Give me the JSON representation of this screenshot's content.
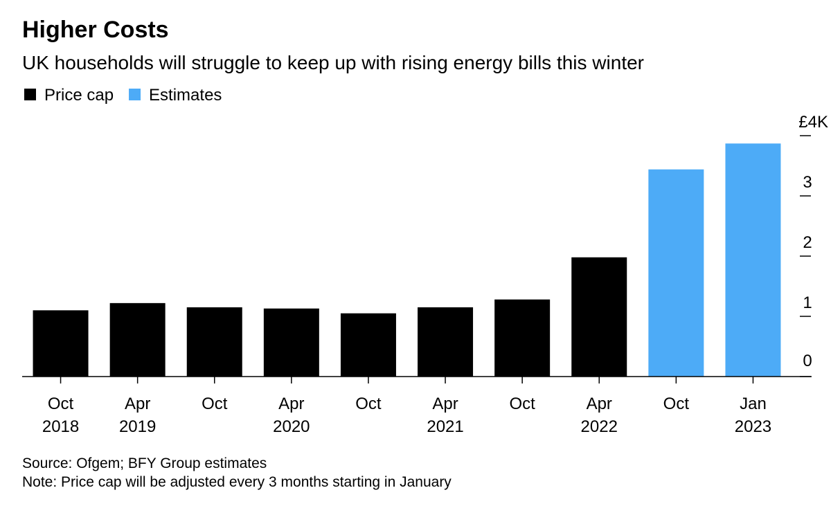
{
  "chart_data": {
    "type": "bar",
    "title": "Higher Costs",
    "subtitle": "UK households will struggle to keep up with rising energy bills this winter",
    "categories": [
      [
        "Oct",
        "2018"
      ],
      [
        "Apr",
        "2019"
      ],
      [
        "Oct"
      ],
      [
        "Apr",
        "2020"
      ],
      [
        "Oct"
      ],
      [
        "Apr",
        "2021"
      ],
      [
        "Oct"
      ],
      [
        "Apr",
        "2022"
      ],
      [
        "Oct"
      ],
      [
        "Jan",
        "2023"
      ]
    ],
    "series": [
      {
        "name": "Price cap",
        "color": "#000000",
        "values": [
          1.1,
          1.22,
          1.15,
          1.13,
          1.05,
          1.15,
          1.28,
          1.98,
          null,
          null
        ]
      },
      {
        "name": "Estimates",
        "color": "#4dabf7",
        "values": [
          null,
          null,
          null,
          null,
          null,
          null,
          null,
          null,
          3.44,
          3.87
        ]
      }
    ],
    "ylim": [
      0,
      4
    ],
    "yticks": [
      0,
      1,
      2,
      3,
      {
        "value": 4,
        "label": "£4K"
      }
    ],
    "legend": "top-left",
    "source": "Source: Ofgem; BFY Group estimates",
    "note": "Note: Price cap will be adjusted every 3 months starting in January"
  }
}
